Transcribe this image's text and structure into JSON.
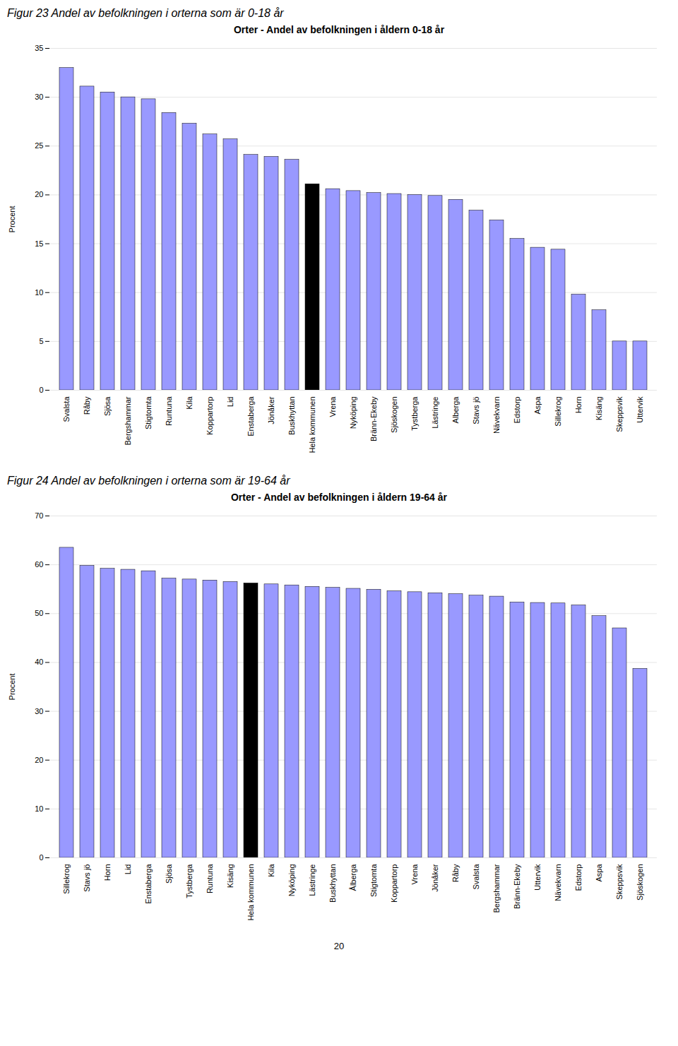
{
  "chart_data": [
    {
      "type": "bar",
      "title": "Orter - Andel av befolkningen i åldern 0-18 år",
      "subtitle": "Figur 23 Andel av befolkningen i orterna som är 0-18 år",
      "y_label": "Procent",
      "categories": [
        "Svalsta",
        "Råby",
        "Sjösa",
        "Bergshammar",
        "Stigtomta",
        "Runtuna",
        "Kila",
        "Koppartorp",
        "Lid",
        "Enstaberga",
        "Jönåker",
        "Buskhyttan",
        "Hela kommunen",
        "Vrena",
        "Nyköping",
        "Bränn-Ekeby",
        "Sjöskogen",
        "Tystberga",
        "Lästringe",
        "Alberga",
        "Stavs jö",
        "Nävekvarn",
        "Edstorp",
        "Aspa",
        "Sillekrog",
        "Horn",
        "Kisäng",
        "Skeppsvik",
        "Uttervik"
      ],
      "values": [
        33.0,
        31.1,
        30.5,
        30.0,
        29.8,
        28.4,
        27.3,
        26.2,
        25.7,
        24.1,
        23.9,
        23.6,
        21.1,
        20.6,
        20.4,
        20.2,
        20.1,
        20.0,
        19.9,
        19.5,
        18.4,
        17.4,
        15.5,
        14.6,
        14.4,
        9.8,
        8.2,
        5.0,
        5.0
      ],
      "colors": [
        "#9999ff",
        "#9999ff",
        "#9999ff",
        "#9999ff",
        "#9999ff",
        "#9999ff",
        "#9999ff",
        "#9999ff",
        "#9999ff",
        "#9999ff",
        "#9999ff",
        "#9999ff",
        "#000000",
        "#9999ff",
        "#9999ff",
        "#9999ff",
        "#9999ff",
        "#9999ff",
        "#9999ff",
        "#9999ff",
        "#9999ff",
        "#9999ff",
        "#9999ff",
        "#9999ff",
        "#9999ff",
        "#9999ff",
        "#9999ff",
        "#9999ff",
        "#9999ff"
      ],
      "ylim": [
        0,
        35
      ],
      "yticks": [
        0,
        5,
        10,
        15,
        20,
        25,
        30,
        35
      ],
      "grid": true
    },
    {
      "type": "bar",
      "title": "Orter - Andel av befolkningen i åldern 19-64 år",
      "subtitle": "Figur 24 Andel av befolkningen i orterna som är 19-64 år",
      "y_label": "Procent",
      "categories": [
        "Sillekrog",
        "Stavs jö",
        "Horn",
        "Lid",
        "Enstaberga",
        "Sjösa",
        "Tystberga",
        "Runtuna",
        "Kisäng",
        "Hela kommunen",
        "Kila",
        "Nyköping",
        "Lästringe",
        "Buskhyttan",
        "Ålberga",
        "Stigtomta",
        "Koppartorp",
        "Vrena",
        "Jönåker",
        "Råby",
        "Svalsta",
        "Bergshammar",
        "Bränn-Ekeby",
        "Uttervik",
        "Nävekvarn",
        "Edstorp",
        "Aspa",
        "Skeppsvik",
        "Sjöskogen"
      ],
      "values": [
        63.5,
        59.8,
        59.2,
        59.0,
        58.7,
        57.2,
        57.0,
        56.8,
        56.5,
        56.2,
        56.0,
        55.8,
        55.5,
        55.3,
        55.1,
        54.9,
        54.6,
        54.4,
        54.2,
        54.0,
        53.7,
        53.5,
        52.3,
        52.2,
        52.1,
        51.7,
        49.5,
        47.0,
        38.7
      ],
      "colors": [
        "#9999ff",
        "#9999ff",
        "#9999ff",
        "#9999ff",
        "#9999ff",
        "#9999ff",
        "#9999ff",
        "#9999ff",
        "#9999ff",
        "#000000",
        "#9999ff",
        "#9999ff",
        "#9999ff",
        "#9999ff",
        "#9999ff",
        "#9999ff",
        "#9999ff",
        "#9999ff",
        "#9999ff",
        "#9999ff",
        "#9999ff",
        "#9999ff",
        "#9999ff",
        "#9999ff",
        "#9999ff",
        "#9999ff",
        "#9999ff",
        "#9999ff",
        "#9999ff"
      ],
      "ylim": [
        0,
        70
      ],
      "yticks": [
        0,
        10,
        20,
        30,
        40,
        50,
        60,
        70
      ],
      "grid": true,
      "annotations": [
        "20"
      ]
    }
  ]
}
